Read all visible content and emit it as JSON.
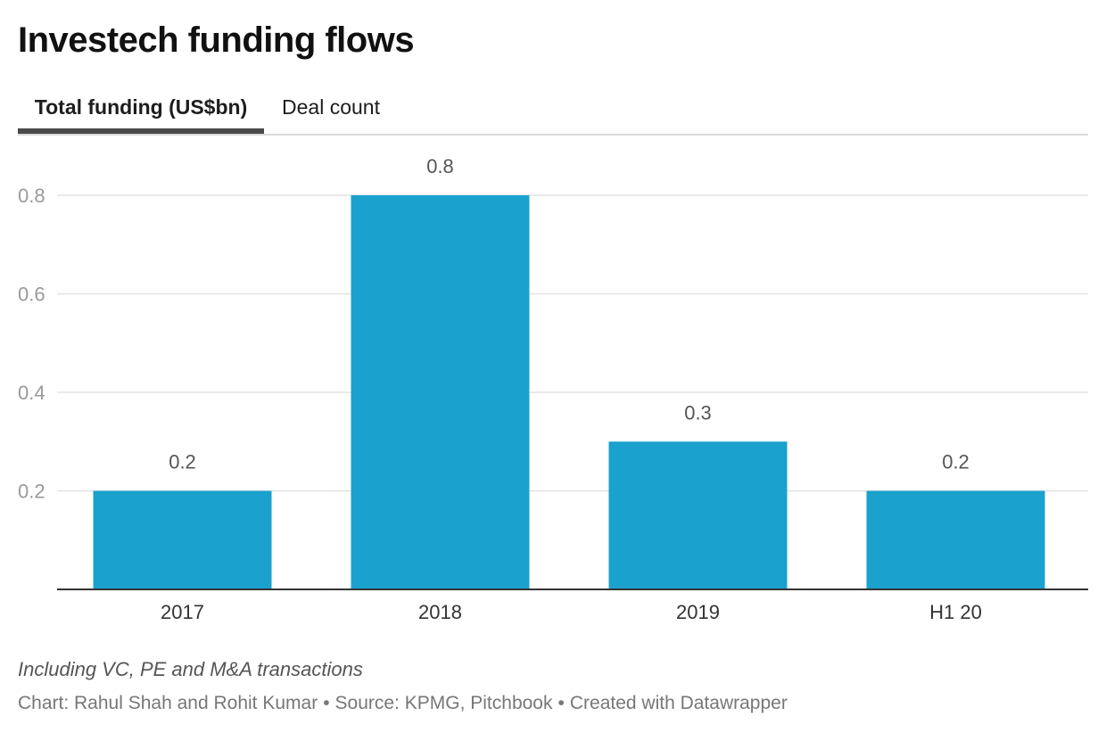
{
  "header": {
    "title": "Investech funding flows"
  },
  "tabs": [
    {
      "label": "Total funding (US$bn)",
      "active": true
    },
    {
      "label": "Deal count",
      "active": false
    }
  ],
  "chart_data": {
    "type": "bar",
    "title": "Investech funding flows",
    "categories": [
      "2017",
      "2018",
      "2019",
      "H1 20"
    ],
    "values": [
      0.2,
      0.8,
      0.3,
      0.2
    ],
    "value_labels": [
      "0.2",
      "0.8",
      "0.3",
      "0.2"
    ],
    "yticks": [
      0.2,
      0.4,
      0.6,
      0.8
    ],
    "ytick_labels": [
      "0.2",
      "0.4",
      "0.6",
      "0.8"
    ],
    "ylim": [
      0,
      0.8
    ],
    "xlabel": "",
    "ylabel": "",
    "grid": true,
    "legend": "none",
    "bar_color": "#1aa1cd"
  },
  "footer": {
    "notes": "Including VC, PE and M&A transactions",
    "chart_credit": "Chart: Rahul Shah and Rohit Kumar",
    "source": "Source: KPMG, Pitchbook",
    "tool": "Created with Datawrapper",
    "separator": "•"
  }
}
